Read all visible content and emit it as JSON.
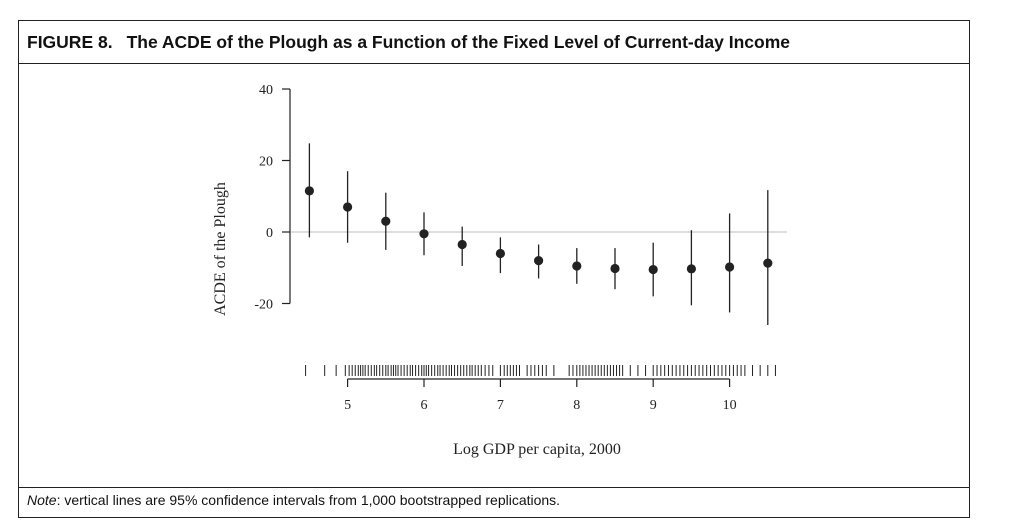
{
  "figure": {
    "label": "FIGURE 8.",
    "title": "The ACDE of the Plough as a Function of the Fixed Level of Current-day Income",
    "note_prefix": "Note",
    "note_text": ": vertical lines are 95% confidence intervals from 1,000 bootstrapped replications."
  },
  "chart_data": {
    "type": "scatter",
    "title": "The ACDE of the Plough as a Function of the Fixed Level of Current-day Income",
    "xlabel": "Log GDP per capita, 2000",
    "ylabel": "ACDE of the Plough",
    "xlim": [
      4.2,
      11.0
    ],
    "ylim": [
      -20,
      40
    ],
    "x_ticks": [
      5,
      6,
      7,
      8,
      9,
      10
    ],
    "y_ticks": [
      40,
      20,
      0,
      -20
    ],
    "y_tick_labels": [
      "40",
      "20",
      "0",
      "-20"
    ],
    "reference_line_y": 0,
    "series": [
      {
        "x": [
          4.5,
          5.0,
          5.5,
          6.0,
          6.5,
          7.0,
          7.5,
          8.0,
          8.5,
          9.0,
          9.5,
          10.0,
          10.5
        ],
        "y": [
          11.5,
          7.0,
          3.0,
          -0.5,
          -3.5,
          -6.0,
          -8.0,
          -9.5,
          -10.2,
          -10.5,
          -10.3,
          -9.8,
          -8.7
        ],
        "ci_low": [
          -1.5,
          -3.0,
          -5.0,
          -6.5,
          -9.5,
          -11.5,
          -13.0,
          -14.5,
          -16.0,
          -18.0,
          -20.5,
          -22.5,
          -26.0
        ],
        "ci_high": [
          24.8,
          17.0,
          11.0,
          5.5,
          1.5,
          -1.5,
          -3.5,
          -4.5,
          -4.5,
          -3.0,
          0.5,
          5.2,
          11.7
        ]
      }
    ],
    "rug_x": [
      4.45,
      4.7,
      4.85,
      4.97,
      5.02,
      5.06,
      5.1,
      5.14,
      5.17,
      5.2,
      5.23,
      5.27,
      5.31,
      5.35,
      5.38,
      5.42,
      5.46,
      5.5,
      5.53,
      5.57,
      5.6,
      5.63,
      5.66,
      5.7,
      5.74,
      5.78,
      5.82,
      5.85,
      5.89,
      5.93,
      5.97,
      6.0,
      6.03,
      6.06,
      6.1,
      6.14,
      6.18,
      6.21,
      6.25,
      6.29,
      6.33,
      6.36,
      6.4,
      6.44,
      6.48,
      6.52,
      6.56,
      6.6,
      6.63,
      6.67,
      6.71,
      6.75,
      6.8,
      6.85,
      6.9,
      7.0,
      7.05,
      7.09,
      7.13,
      7.17,
      7.21,
      7.25,
      7.35,
      7.4,
      7.45,
      7.5,
      7.55,
      7.6,
      7.7,
      7.9,
      7.95,
      8.0,
      8.04,
      8.08,
      8.12,
      8.16,
      8.2,
      8.24,
      8.28,
      8.32,
      8.36,
      8.4,
      8.44,
      8.48,
      8.52,
      8.56,
      8.6,
      8.7,
      8.8,
      8.9,
      9.0,
      9.05,
      9.1,
      9.15,
      9.2,
      9.25,
      9.3,
      9.35,
      9.4,
      9.45,
      9.5,
      9.55,
      9.6,
      9.65,
      9.7,
      9.75,
      9.8,
      9.85,
      9.9,
      9.95,
      10.0,
      10.05,
      10.1,
      10.15,
      10.2,
      10.3,
      10.4,
      10.5,
      10.6
    ]
  }
}
